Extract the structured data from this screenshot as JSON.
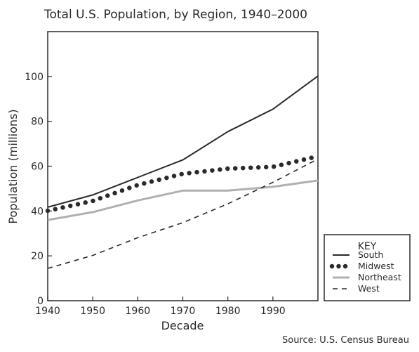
{
  "colors": {
    "south": "#2a2a2a",
    "midwest": "#2a2a2a",
    "northeast": "#b0b0b0",
    "west": "#2a2a2a",
    "axis": "#2a2a2a"
  },
  "chart_data": {
    "type": "line",
    "title": "Total U.S. Population, by Region, 1940–2000",
    "xlabel": "Decade",
    "ylabel": "Population (millions)",
    "x": [
      1940,
      1950,
      1960,
      1970,
      1980,
      1990,
      2000
    ],
    "x_tick_labels": [
      "1940",
      "1950",
      "1960",
      "1970",
      "1980",
      "1990"
    ],
    "xlim": [
      1940,
      2000
    ],
    "ylim": [
      0,
      120
    ],
    "y_ticks": [
      0,
      20,
      40,
      60,
      80,
      100
    ],
    "y_tick_labels": [
      "0",
      "20",
      "40",
      "60",
      "80",
      "100"
    ],
    "grid": false,
    "legend_position": "bottom-right",
    "legend_title": "KEY",
    "source": "Source: U.S. Census Bureau",
    "series": [
      {
        "key": "south",
        "name": "South",
        "style": "solid",
        "values": [
          41.7,
          47.2,
          55.0,
          62.8,
          75.4,
          85.4,
          100.2
        ]
      },
      {
        "key": "midwest",
        "name": "Midwest",
        "style": "dotted",
        "values": [
          40.1,
          44.5,
          51.6,
          56.6,
          58.9,
          59.7,
          64.4
        ]
      },
      {
        "key": "northeast",
        "name": "Northeast",
        "style": "solid-light",
        "values": [
          36.0,
          39.5,
          44.7,
          49.1,
          49.1,
          50.8,
          53.6
        ]
      },
      {
        "key": "west",
        "name": "West",
        "style": "dashed",
        "values": [
          14.4,
          20.2,
          28.1,
          34.8,
          43.2,
          52.8,
          63.2
        ]
      }
    ]
  }
}
